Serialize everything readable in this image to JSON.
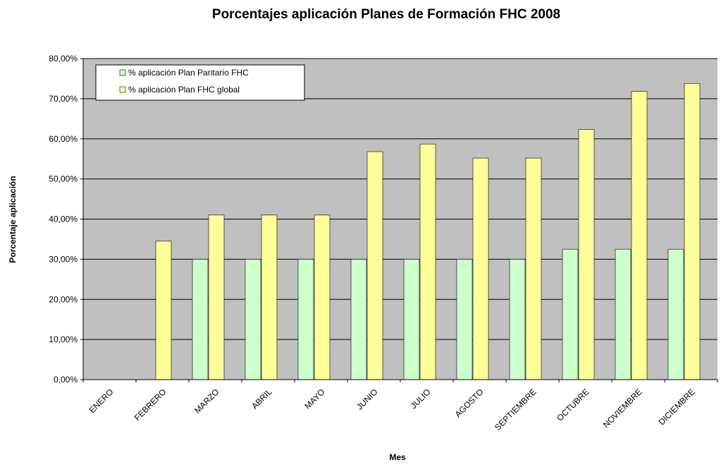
{
  "chart_data": {
    "type": "bar",
    "title": "Porcentajes aplicación Planes de Formación FHC 2008",
    "x_label": "Mes",
    "y_label": "Porcentaje aplicación",
    "categories": [
      "ENERO",
      "FEBRERO",
      "MARZO",
      "ABRIL",
      "MAYO",
      "JUNIO",
      "JULIO",
      "AGOSTO",
      "SEPTIEMBRE",
      "OCTUBRE",
      "NOVIEMBRE",
      "DICIEMBRE"
    ],
    "series": [
      {
        "name": "% aplicación Plan Paritario FHC",
        "color": "#ccffcc",
        "values": [
          0,
          0,
          30,
          30,
          30,
          30,
          30,
          30,
          30,
          32.5,
          32.5,
          32.5
        ]
      },
      {
        "name": "% aplicación Plan FHC global",
        "color": "#ffff99",
        "values": [
          0,
          34.5,
          41,
          41,
          41,
          56.8,
          58.7,
          55.2,
          55.2,
          62.3,
          71.8,
          73.8
        ]
      }
    ],
    "ylim": [
      0,
      80
    ],
    "yticks": [
      {
        "value": 0,
        "label": "0,00%"
      },
      {
        "value": 10,
        "label": "10,00%"
      },
      {
        "value": 20,
        "label": "20,00%"
      },
      {
        "value": 30,
        "label": "30,00%"
      },
      {
        "value": 40,
        "label": "40,00%"
      },
      {
        "value": 50,
        "label": "50,00%"
      },
      {
        "value": 60,
        "label": "60,00%"
      },
      {
        "value": 70,
        "label": "70,00%"
      },
      {
        "value": 80,
        "label": "80,00%"
      }
    ],
    "grid": true,
    "legend": "top-left"
  }
}
